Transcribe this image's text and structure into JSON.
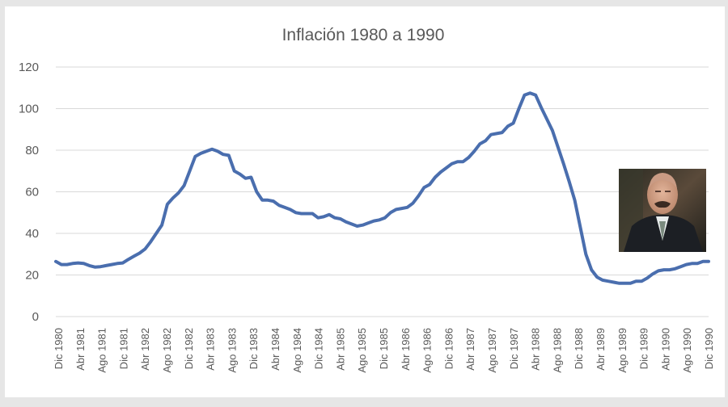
{
  "chart_data": {
    "type": "line",
    "title": "Inflación 1980 a 1990",
    "xlabel": "",
    "ylabel": "",
    "ylim": [
      0,
      120
    ],
    "yticks": [
      0,
      20,
      40,
      60,
      80,
      100,
      120
    ],
    "grid": true,
    "legend": "none",
    "x_tick_labels": [
      "Dic 1980",
      "Abr 1981",
      "Ago 1981",
      "Dic 1981",
      "Abr 1982",
      "Ago 1982",
      "Dic 1982",
      "Abr 1983",
      "Ago 1983",
      "Dic 1983",
      "Abr 1984",
      "Ago 1984",
      "Dic 1984",
      "Abr 1985",
      "Ago 1985",
      "Dic 1985",
      "Abr 1986",
      "Ago 1986",
      "Dic 1986",
      "Abr 1987",
      "Ago 1987",
      "Dic 1987",
      "Abr 1988",
      "Ago 1988",
      "Dic 1988",
      "Abr 1989",
      "Ago 1989",
      "Dic 1989",
      "Abr 1990",
      "Ago 1990",
      "Dic 1990"
    ],
    "series": [
      {
        "color": "#4a6eae",
        "values": [
          26.5,
          25,
          25,
          25.5,
          25.8,
          25.5,
          24.5,
          23.8,
          24,
          24.5,
          25,
          25.5,
          25.8,
          27.5,
          29,
          30.5,
          32.5,
          36,
          40,
          44,
          54,
          57,
          59.5,
          63,
          70,
          77,
          78.5,
          79.5,
          80.5,
          79.5,
          78,
          77.5,
          70,
          68.5,
          66.5,
          67,
          60,
          56,
          56,
          55.5,
          53.5,
          52.5,
          51.5,
          50,
          49.5,
          49.5,
          49.5,
          47.5,
          48,
          49,
          47.5,
          47,
          45.5,
          44.5,
          43.5,
          44,
          45,
          46,
          46.5,
          47.5,
          50,
          51.5,
          52,
          52.5,
          54.5,
          58,
          62,
          63.5,
          67,
          69.5,
          71.5,
          73.5,
          74.5,
          74.5,
          76.5,
          79.5,
          83,
          84.5,
          87.5,
          88,
          88.5,
          91.5,
          93,
          100,
          106.5,
          107.5,
          106.5,
          100.5,
          95,
          89.5,
          81.5,
          73.5,
          65,
          56,
          43,
          30,
          22.5,
          19,
          17.5,
          17,
          16.5,
          16,
          16,
          16,
          17,
          17,
          18.5,
          20.5,
          22,
          22.5,
          22.5,
          23,
          24,
          25,
          25.5,
          25.5,
          26.5,
          26.5
        ]
      }
    ]
  },
  "portrait_alt": "Retrato"
}
